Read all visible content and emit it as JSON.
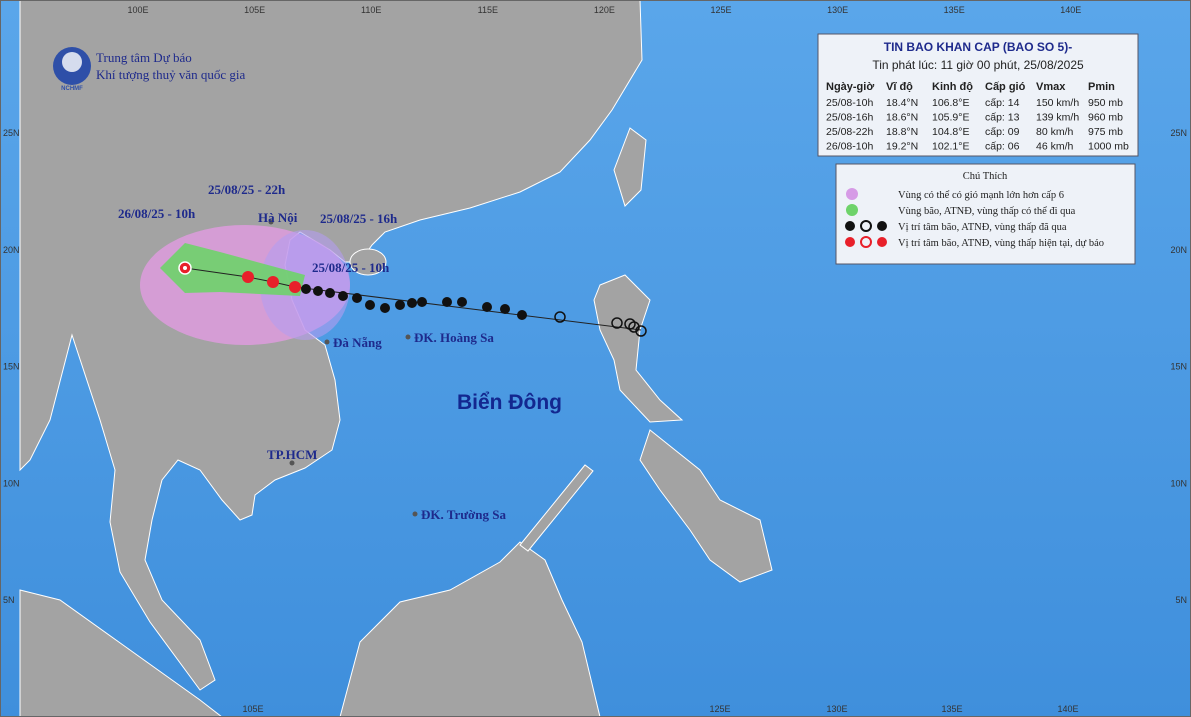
{
  "header": {
    "org_line1": "Trung tâm Dự báo",
    "org_line2": "Khí tượng thuỷ văn quốc gia",
    "logo": "NCHMF"
  },
  "info": {
    "title": "TIN BAO KHAN CAP (BAO SO 5)-",
    "subtitle": "Tin phát lúc: 11 giờ 00 phút, 25/08/2025",
    "columns": [
      "Ngày-giờ",
      "Vĩ độ",
      "Kinh độ",
      "Cấp gió",
      "Vmax",
      "Pmin"
    ],
    "rows": [
      [
        "25/08-10h",
        "18.4°N",
        "106.8°E",
        "cấp: 14",
        "150 km/h",
        "950 mb"
      ],
      [
        "25/08-16h",
        "18.6°N",
        "105.9°E",
        "cấp: 13",
        "139 km/h",
        "960 mb"
      ],
      [
        "25/08-22h",
        "18.8°N",
        "104.8°E",
        "cấp: 09",
        "80 km/h",
        "975 mb"
      ],
      [
        "26/08-10h",
        "19.2°N",
        "102.1°E",
        "cấp: 06",
        "46 km/h",
        "1000 mb"
      ]
    ]
  },
  "legend": {
    "title": "Chú Thích",
    "items": [
      "Vùng có thể có gió mạnh lớn hơn cấp 6",
      "Vùng bão, ATNĐ, vùng thấp có thể đi qua",
      "Vị trí tâm bão, ATNĐ, vùng thấp đã qua",
      "Vị trí tâm bão, ATNĐ, vùng thấp hiện tại, dự báo"
    ]
  },
  "labels": {
    "time_labels": [
      "25/08/25 - 22h",
      "26/08/25 - 10h",
      "25/08/25 - 16h",
      "25/08/25 - 10h"
    ],
    "places": [
      "Hà Nội",
      "Đà Nẵng",
      "ĐK. Hoàng Sa",
      "TP.HCM",
      "ĐK. Trường Sa"
    ],
    "sea": "Biển Đông"
  },
  "axes": {
    "top_lon": [
      "100E",
      "105E",
      "110E",
      "115E",
      "120E",
      "125E",
      "130E",
      "135E",
      "140E"
    ],
    "bottom_lon": [
      "105E",
      "125E",
      "130E",
      "135E",
      "140E"
    ],
    "lat": [
      "25N",
      "20N",
      "15N",
      "10N",
      "5N"
    ]
  }
}
